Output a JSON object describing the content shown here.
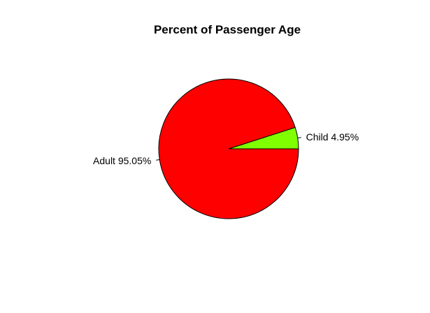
{
  "chart_data": {
    "type": "pie",
    "title": "Percent of Passenger Age",
    "slices": [
      {
        "label": "Child 4.95%",
        "category": "Child",
        "value": 4.95,
        "color": "#80ff00"
      },
      {
        "label": "Adult 95.05%",
        "category": "Adult",
        "value": 95.05,
        "color": "#ff0000"
      }
    ],
    "start_angle_deg": 0,
    "direction": "counterclockwise",
    "border_color": "#000000",
    "legend": "none"
  }
}
